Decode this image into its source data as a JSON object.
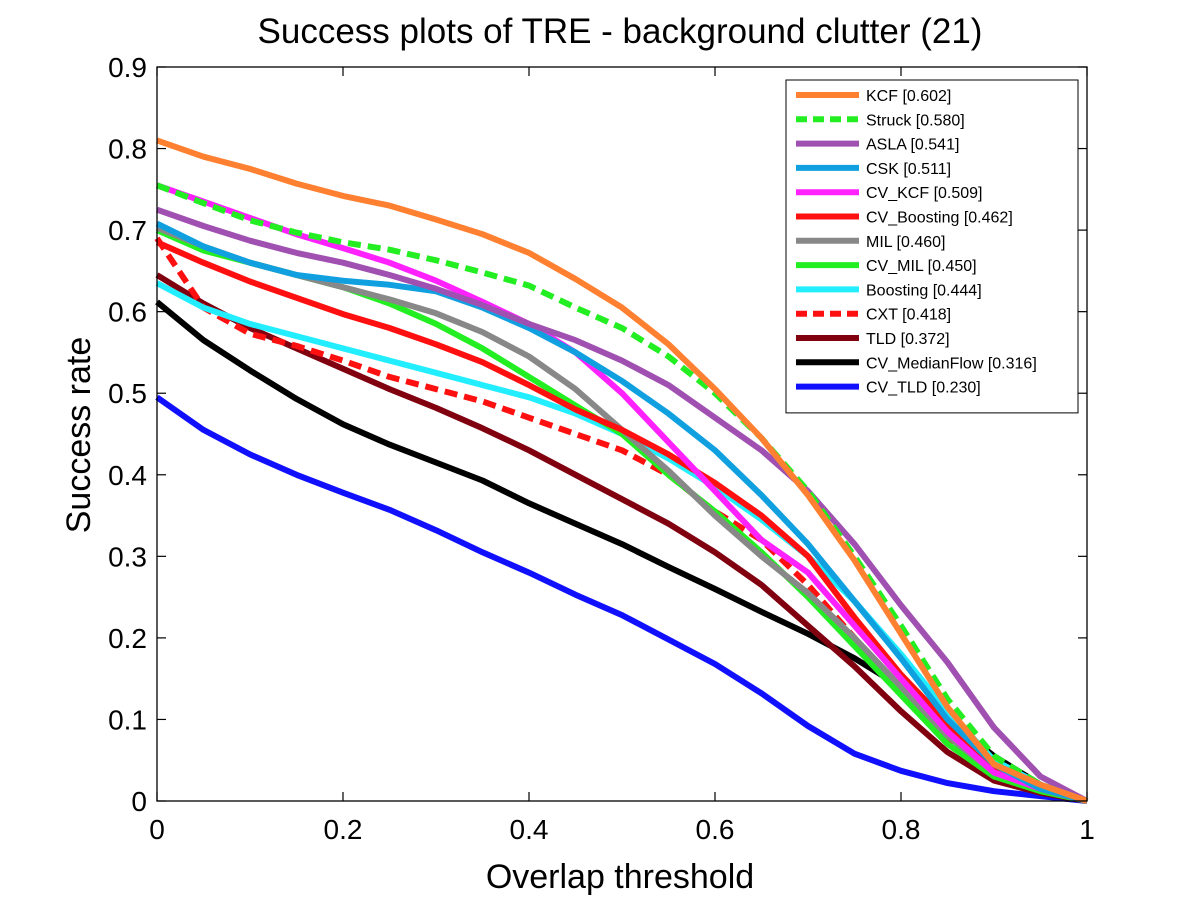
{
  "chart_data": {
    "type": "line",
    "title": "Success plots of TRE - background clutter (21)",
    "xlabel": "Overlap threshold",
    "ylabel": "Success rate",
    "xlim": [
      0,
      1
    ],
    "ylim": [
      0,
      0.9
    ],
    "xticks": [
      "0",
      "0.2",
      "0.4",
      "0.6",
      "0.8",
      "1"
    ],
    "yticks": [
      "0",
      "0.1",
      "0.2",
      "0.3",
      "0.4",
      "0.5",
      "0.6",
      "0.7",
      "0.8",
      "0.9"
    ],
    "grid": false,
    "legend_position": "top-right",
    "x": [
      0,
      0.05,
      0.1,
      0.15,
      0.2,
      0.25,
      0.3,
      0.35,
      0.4,
      0.45,
      0.5,
      0.55,
      0.6,
      0.65,
      0.7,
      0.75,
      0.8,
      0.85,
      0.9,
      0.95,
      1.0
    ],
    "series": [
      {
        "name": "KCF [0.602]",
        "color": "#ff8030",
        "dash": "solid",
        "values": [
          0.81,
          0.79,
          0.775,
          0.757,
          0.742,
          0.73,
          0.713,
          0.695,
          0.672,
          0.64,
          0.605,
          0.56,
          0.505,
          0.445,
          0.375,
          0.295,
          0.205,
          0.115,
          0.045,
          0.02,
          0.0
        ]
      },
      {
        "name": "Struck [0.580]",
        "color": "#22ee22",
        "dash": "dashed",
        "values": [
          0.755,
          0.733,
          0.712,
          0.697,
          0.685,
          0.676,
          0.663,
          0.648,
          0.632,
          0.605,
          0.58,
          0.545,
          0.5,
          0.445,
          0.38,
          0.3,
          0.215,
          0.125,
          0.055,
          0.02,
          0.0
        ]
      },
      {
        "name": "ASLA [0.541]",
        "color": "#a050b0",
        "dash": "solid",
        "values": [
          0.725,
          0.705,
          0.687,
          0.672,
          0.66,
          0.645,
          0.628,
          0.608,
          0.585,
          0.565,
          0.54,
          0.51,
          0.47,
          0.43,
          0.38,
          0.315,
          0.24,
          0.17,
          0.09,
          0.03,
          0.0
        ]
      },
      {
        "name": "CSK [0.511]",
        "color": "#10a0e0",
        "dash": "solid",
        "values": [
          0.708,
          0.68,
          0.66,
          0.645,
          0.638,
          0.633,
          0.625,
          0.605,
          0.58,
          0.55,
          0.515,
          0.475,
          0.43,
          0.375,
          0.315,
          0.245,
          0.175,
          0.1,
          0.045,
          0.015,
          0.0
        ]
      },
      {
        "name": "CV_KCF [0.509]",
        "color": "#ff22ff",
        "dash": "solid",
        "values": [
          0.755,
          0.735,
          0.715,
          0.695,
          0.678,
          0.66,
          0.638,
          0.612,
          0.585,
          0.55,
          0.5,
          0.44,
          0.38,
          0.32,
          0.28,
          0.215,
          0.15,
          0.085,
          0.035,
          0.015,
          0.0
        ]
      },
      {
        "name": "CV_Boosting [0.462]",
        "color": "#ff1010",
        "dash": "solid",
        "values": [
          0.685,
          0.66,
          0.637,
          0.617,
          0.597,
          0.58,
          0.56,
          0.538,
          0.51,
          0.48,
          0.455,
          0.425,
          0.39,
          0.35,
          0.3,
          0.225,
          0.155,
          0.095,
          0.04,
          0.015,
          0.0
        ]
      },
      {
        "name": "MIL [0.460]",
        "color": "#888888",
        "dash": "solid",
        "values": [
          0.703,
          0.68,
          0.66,
          0.645,
          0.63,
          0.615,
          0.598,
          0.575,
          0.545,
          0.505,
          0.455,
          0.405,
          0.35,
          0.3,
          0.255,
          0.2,
          0.14,
          0.08,
          0.035,
          0.015,
          0.0
        ]
      },
      {
        "name": "CV_MIL [0.450]",
        "color": "#22ee22",
        "dash": "solid",
        "values": [
          0.7,
          0.675,
          0.66,
          0.645,
          0.63,
          0.61,
          0.585,
          0.555,
          0.52,
          0.485,
          0.45,
          0.4,
          0.355,
          0.305,
          0.25,
          0.19,
          0.13,
          0.07,
          0.03,
          0.012,
          0.0
        ]
      },
      {
        "name": "Boosting [0.444]",
        "color": "#22eeff",
        "dash": "solid",
        "values": [
          0.635,
          0.605,
          0.585,
          0.57,
          0.555,
          0.54,
          0.525,
          0.51,
          0.495,
          0.475,
          0.45,
          0.42,
          0.385,
          0.345,
          0.3,
          0.245,
          0.18,
          0.11,
          0.05,
          0.02,
          0.0
        ]
      },
      {
        "name": "CXT [0.418]",
        "color": "#ff1010",
        "dash": "dashed",
        "values": [
          0.69,
          0.605,
          0.573,
          0.558,
          0.54,
          0.52,
          0.505,
          0.49,
          0.47,
          0.45,
          0.43,
          0.4,
          0.355,
          0.32,
          0.265,
          0.2,
          0.135,
          0.075,
          0.035,
          0.015,
          0.0
        ]
      },
      {
        "name": "TLD [0.372]",
        "color": "#800010",
        "dash": "solid",
        "values": [
          0.645,
          0.61,
          0.58,
          0.555,
          0.53,
          0.505,
          0.482,
          0.457,
          0.43,
          0.4,
          0.37,
          0.34,
          0.305,
          0.265,
          0.215,
          0.165,
          0.11,
          0.06,
          0.025,
          0.01,
          0.0
        ]
      },
      {
        "name": "CV_MedianFlow [0.316]",
        "color": "#000000",
        "dash": "solid",
        "values": [
          0.612,
          0.565,
          0.528,
          0.493,
          0.462,
          0.437,
          0.415,
          0.393,
          0.365,
          0.34,
          0.315,
          0.287,
          0.26,
          0.232,
          0.205,
          0.175,
          0.14,
          0.1,
          0.055,
          0.02,
          0.0
        ]
      },
      {
        "name": "CV_TLD [0.230]",
        "color": "#1010ff",
        "dash": "solid",
        "values": [
          0.495,
          0.455,
          0.425,
          0.4,
          0.378,
          0.357,
          0.332,
          0.305,
          0.28,
          0.253,
          0.228,
          0.198,
          0.168,
          0.132,
          0.092,
          0.058,
          0.037,
          0.022,
          0.012,
          0.006,
          0.0
        ]
      }
    ]
  }
}
